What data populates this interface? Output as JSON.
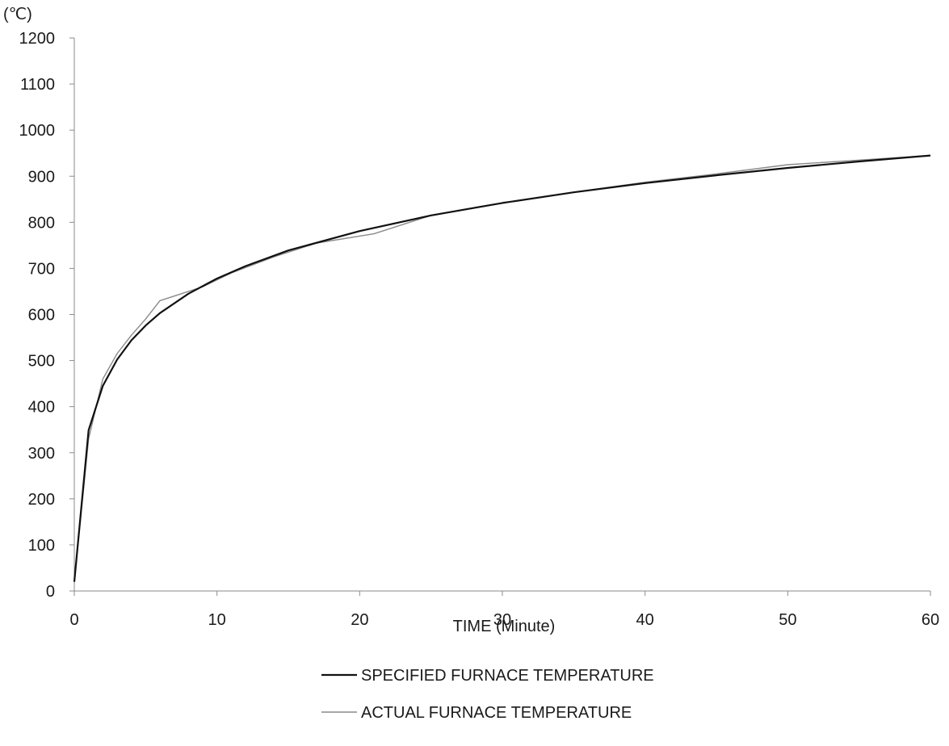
{
  "chart_data": {
    "type": "line",
    "title": "",
    "xlabel": "TIME (Minute)",
    "ylabel": "(℃)",
    "xlim": [
      0,
      60
    ],
    "ylim": [
      0,
      1200
    ],
    "xticks": [
      0,
      10,
      20,
      30,
      40,
      50,
      60
    ],
    "yticks": [
      0,
      100,
      200,
      300,
      400,
      500,
      600,
      700,
      800,
      900,
      1000,
      1100,
      1200
    ],
    "grid": false,
    "legend_placement": "bottom",
    "series": [
      {
        "name": "SPECIFIED FURNACE TEMPERATURE",
        "color": "#111111",
        "x": [
          0,
          1,
          2,
          3,
          4,
          5,
          6,
          8,
          10,
          12,
          15,
          20,
          25,
          30,
          35,
          40,
          45,
          50,
          55,
          60
        ],
        "y": [
          20,
          349,
          445,
          502,
          544,
          576,
          603,
          645,
          678,
          705,
          739,
          781,
          815,
          842,
          865,
          885,
          902,
          918,
          932,
          945
        ]
      },
      {
        "name": "ACTUAL FURNACE TEMPERATURE",
        "color": "#8a8a8a",
        "x": [
          0,
          1,
          2,
          3,
          4,
          5,
          6,
          7,
          9,
          11,
          14,
          17,
          21,
          25,
          30,
          35,
          40,
          45,
          50,
          55,
          60
        ],
        "y": [
          20,
          330,
          460,
          515,
          555,
          590,
          630,
          640,
          660,
          690,
          725,
          755,
          775,
          815,
          842,
          865,
          887,
          905,
          925,
          935,
          945
        ]
      }
    ]
  }
}
